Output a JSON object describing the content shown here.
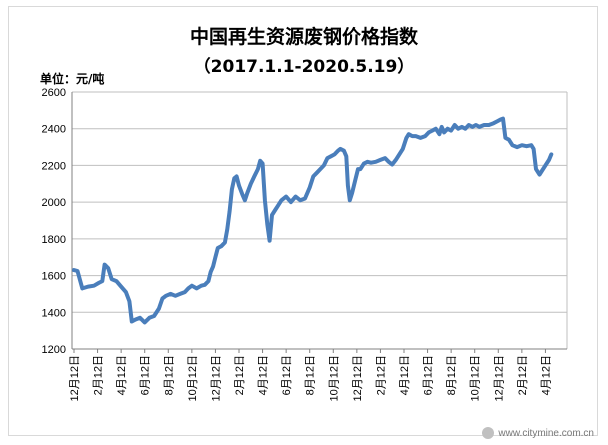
{
  "chart_data": {
    "type": "line",
    "title": "中国再生资源废钢价格指数",
    "subtitle": "（2017.1.1-2020.5.19）",
    "unit": "单位：元/吨",
    "ylim": [
      1200,
      2600
    ],
    "yticks": [
      1200,
      1400,
      1600,
      1800,
      2000,
      2200,
      2400,
      2600
    ],
    "xticks": [
      "12月12日",
      "2月12日",
      "4月12日",
      "6月12日",
      "8月12日",
      "10月12日",
      "12月12日",
      "2月12日",
      "4月12日",
      "6月12日",
      "8月12日",
      "10月12日",
      "12月12日",
      "2月12日",
      "4月12日",
      "6月12日",
      "8月12日",
      "10月12日",
      "12月12日",
      "2月12日",
      "4月12日"
    ],
    "grid": true,
    "line_color": "#4a7ebb",
    "series": [
      {
        "values": [
          [
            0,
            1630
          ],
          [
            0.15,
            1625
          ],
          [
            0.35,
            1530
          ],
          [
            0.6,
            1540
          ],
          [
            0.85,
            1545
          ],
          [
            1.05,
            1560
          ],
          [
            1.2,
            1570
          ],
          [
            1.3,
            1660
          ],
          [
            1.45,
            1640
          ],
          [
            1.6,
            1580
          ],
          [
            1.8,
            1570
          ],
          [
            2.0,
            1540
          ],
          [
            2.2,
            1510
          ],
          [
            2.35,
            1460
          ],
          [
            2.45,
            1350
          ],
          [
            2.6,
            1360
          ],
          [
            2.8,
            1370
          ],
          [
            3.0,
            1345
          ],
          [
            3.2,
            1370
          ],
          [
            3.4,
            1380
          ],
          [
            3.6,
            1420
          ],
          [
            3.75,
            1475
          ],
          [
            3.9,
            1490
          ],
          [
            4.1,
            1500
          ],
          [
            4.3,
            1490
          ],
          [
            4.5,
            1500
          ],
          [
            4.7,
            1510
          ],
          [
            4.85,
            1530
          ],
          [
            5.0,
            1545
          ],
          [
            5.2,
            1530
          ],
          [
            5.4,
            1545
          ],
          [
            5.55,
            1550
          ],
          [
            5.7,
            1570
          ],
          [
            5.8,
            1620
          ],
          [
            5.9,
            1650
          ],
          [
            6.0,
            1700
          ],
          [
            6.1,
            1750
          ],
          [
            6.25,
            1760
          ],
          [
            6.4,
            1780
          ],
          [
            6.5,
            1850
          ],
          [
            6.6,
            1950
          ],
          [
            6.7,
            2070
          ],
          [
            6.8,
            2130
          ],
          [
            6.9,
            2140
          ],
          [
            7.0,
            2090
          ],
          [
            7.15,
            2040
          ],
          [
            7.25,
            2010
          ],
          [
            7.35,
            2050
          ],
          [
            7.5,
            2100
          ],
          [
            7.65,
            2140
          ],
          [
            7.8,
            2180
          ],
          [
            7.9,
            2225
          ],
          [
            8.0,
            2210
          ],
          [
            8.1,
            2010
          ],
          [
            8.2,
            1880
          ],
          [
            8.3,
            1790
          ],
          [
            8.4,
            1930
          ],
          [
            8.55,
            1960
          ],
          [
            8.65,
            1980
          ],
          [
            8.8,
            2010
          ],
          [
            9.0,
            2030
          ],
          [
            9.2,
            2000
          ],
          [
            9.4,
            2030
          ],
          [
            9.6,
            2010
          ],
          [
            9.8,
            2020
          ],
          [
            10.0,
            2080
          ],
          [
            10.15,
            2140
          ],
          [
            10.3,
            2160
          ],
          [
            10.45,
            2180
          ],
          [
            10.6,
            2200
          ],
          [
            10.75,
            2240
          ],
          [
            10.9,
            2250
          ],
          [
            11.05,
            2260
          ],
          [
            11.2,
            2280
          ],
          [
            11.3,
            2290
          ],
          [
            11.45,
            2280
          ],
          [
            11.55,
            2250
          ],
          [
            11.62,
            2090
          ],
          [
            11.7,
            2010
          ],
          [
            11.8,
            2050
          ],
          [
            11.95,
            2130
          ],
          [
            12.05,
            2180
          ],
          [
            12.15,
            2180
          ],
          [
            12.3,
            2210
          ],
          [
            12.45,
            2220
          ],
          [
            12.6,
            2215
          ],
          [
            12.8,
            2220
          ],
          [
            13.0,
            2230
          ],
          [
            13.2,
            2240
          ],
          [
            13.35,
            2220
          ],
          [
            13.5,
            2205
          ],
          [
            13.65,
            2230
          ],
          [
            13.8,
            2260
          ],
          [
            13.95,
            2290
          ],
          [
            14.1,
            2350
          ],
          [
            14.2,
            2370
          ],
          [
            14.35,
            2360
          ],
          [
            14.5,
            2360
          ],
          [
            14.7,
            2350
          ],
          [
            14.9,
            2360
          ],
          [
            15.05,
            2380
          ],
          [
            15.2,
            2390
          ],
          [
            15.35,
            2400
          ],
          [
            15.5,
            2370
          ],
          [
            15.6,
            2410
          ],
          [
            15.7,
            2380
          ],
          [
            15.85,
            2400
          ],
          [
            16.0,
            2390
          ],
          [
            16.15,
            2420
          ],
          [
            16.3,
            2400
          ],
          [
            16.45,
            2410
          ],
          [
            16.6,
            2400
          ],
          [
            16.75,
            2420
          ],
          [
            16.9,
            2410
          ],
          [
            17.05,
            2420
          ],
          [
            17.2,
            2410
          ],
          [
            17.4,
            2420
          ],
          [
            17.6,
            2420
          ],
          [
            17.8,
            2430
          ],
          [
            17.95,
            2440
          ],
          [
            18.1,
            2450
          ],
          [
            18.2,
            2455
          ],
          [
            18.3,
            2350
          ],
          [
            18.45,
            2340
          ],
          [
            18.6,
            2310
          ],
          [
            18.8,
            2300
          ],
          [
            19.0,
            2310
          ],
          [
            19.2,
            2305
          ],
          [
            19.4,
            2310
          ],
          [
            19.5,
            2290
          ],
          [
            19.6,
            2180
          ],
          [
            19.75,
            2150
          ],
          [
            19.85,
            2170
          ],
          [
            20.0,
            2200
          ],
          [
            20.15,
            2230
          ],
          [
            20.25,
            2260
          ]
        ]
      }
    ]
  },
  "watermark": {
    "text": "www.citymine.com.cn",
    "icon": "citymine-logo-icon"
  }
}
